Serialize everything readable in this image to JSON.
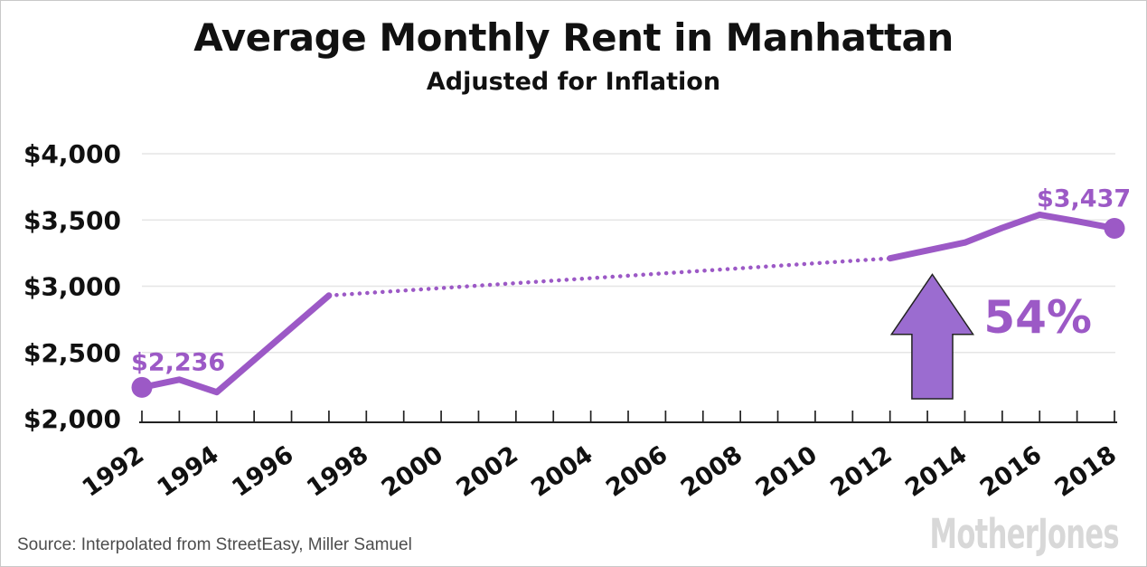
{
  "header": {
    "title": "Average Monthly Rent in Manhattan",
    "subtitle": "Adjusted for Inflation"
  },
  "footer": {
    "source": "Source: Interpolated from StreetEasy, Miller Samuel",
    "logo": "MotherJones"
  },
  "colors": {
    "line_purple": "#9c59c6",
    "label_purple": "#9c59c6",
    "arrow_fill": "#9b6cd0",
    "arrow_outline": "#222222",
    "grid": "#e6e6e6",
    "axis": "#222222",
    "text_dark": "#111111",
    "source_text": "#4d4d4d",
    "logo_gray": "#d8d8d8"
  },
  "chart_data": {
    "type": "line",
    "title": "Average Monthly Rent in Manhattan",
    "subtitle": "Adjusted for Inflation",
    "xlabel": "",
    "ylabel": "",
    "xlim": [
      1992,
      2018
    ],
    "ylim": [
      2000,
      4000
    ],
    "grid": "horizontal-only",
    "legend_position": "none",
    "y_ticks": [
      {
        "value": 2000,
        "label": "$2,000"
      },
      {
        "value": 2500,
        "label": "$2,500"
      },
      {
        "value": 3000,
        "label": "$3,000"
      },
      {
        "value": 3500,
        "label": "$3,500"
      },
      {
        "value": 4000,
        "label": "$4,000"
      }
    ],
    "x_minor_tick_every": 1,
    "x_label_every": 2,
    "x_labels": [
      "1992",
      "1994",
      "1996",
      "1998",
      "2000",
      "2002",
      "2004",
      "2006",
      "2008",
      "2010",
      "2012",
      "2014",
      "2016",
      "2018"
    ],
    "series": [
      {
        "name": "rent-actual-early",
        "style": "solid",
        "points": [
          [
            1992,
            2236
          ],
          [
            1993,
            2295
          ],
          [
            1994,
            2200
          ],
          [
            1997,
            2930
          ]
        ]
      },
      {
        "name": "rent-interpolated",
        "style": "dotted",
        "points": [
          [
            1997,
            2930
          ],
          [
            2012,
            3210
          ]
        ]
      },
      {
        "name": "rent-actual-recent",
        "style": "solid",
        "points": [
          [
            2012,
            3210
          ],
          [
            2013,
            3270
          ],
          [
            2014,
            3330
          ],
          [
            2015,
            3440
          ],
          [
            2016,
            3540
          ],
          [
            2017,
            3490
          ],
          [
            2018,
            3437
          ]
        ]
      }
    ],
    "endpoint_markers": [
      {
        "x": 1992,
        "y": 2236
      },
      {
        "x": 2018,
        "y": 3437
      }
    ],
    "data_labels": [
      {
        "text": "$2,236",
        "x": 1992.97,
        "y": 2365
      },
      {
        "text": "$3,437",
        "x": 2017.18,
        "y": 3600
      }
    ],
    "annotations": {
      "pct_label": {
        "text": "54%",
        "x": 2015.95,
        "y": 2650
      },
      "arrow": {
        "tip_x": 2013.13,
        "tip_y": 3089,
        "head_base_y": 2637,
        "head_half_width": 1.09,
        "shaft_half_width": 0.545,
        "shaft_bottom_y": 2150
      }
    }
  }
}
